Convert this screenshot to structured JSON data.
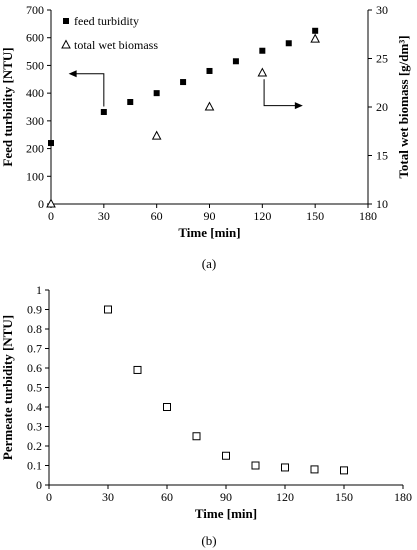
{
  "chart_data": [
    {
      "panel": "(a)",
      "type": "scatter",
      "xlabel": "Time [min]",
      "ylabel": "Feed turbidity [NTU]",
      "y2label": "Total wet biomass [g/dm³]",
      "xlim": [
        0,
        180
      ],
      "ylim": [
        0,
        700
      ],
      "y2lim": [
        10,
        30
      ],
      "xticks": [
        "0",
        "30",
        "60",
        "90",
        "120",
        "150",
        "180"
      ],
      "yticks": [
        "0",
        "100",
        "200",
        "300",
        "400",
        "500",
        "600",
        "700"
      ],
      "y2ticks": [
        "10",
        "15",
        "20",
        "25",
        "30"
      ],
      "legend_position": "top-left",
      "grid": false,
      "series": [
        {
          "name": "feed turbidity",
          "axis": "left",
          "marker": "filled-square",
          "x": [
            0,
            30,
            45,
            60,
            75,
            90,
            105,
            120,
            135,
            150
          ],
          "y": [
            220,
            332,
            368,
            400,
            440,
            480,
            515,
            553,
            580,
            625
          ]
        },
        {
          "name": "total wet biomass",
          "axis": "right",
          "marker": "open-triangle",
          "x": [
            0,
            60,
            90,
            120,
            150
          ],
          "y": [
            10,
            17,
            20,
            23.5,
            27
          ]
        }
      ]
    },
    {
      "panel": "(b)",
      "type": "scatter",
      "xlabel": "Time [min]",
      "ylabel": "Permeate turbidity [NTU]",
      "xlim": [
        0,
        180
      ],
      "ylim": [
        0,
        1
      ],
      "xticks": [
        "0",
        "30",
        "60",
        "90",
        "120",
        "150",
        "180"
      ],
      "yticks": [
        "0",
        "0.1",
        "0.2",
        "0.3",
        "0.4",
        "0.5",
        "0.6",
        "0.7",
        "0.8",
        "0.9",
        "1"
      ],
      "grid": false,
      "series": [
        {
          "marker": "open-square",
          "x": [
            30,
            45,
            60,
            75,
            90,
            105,
            120,
            135,
            150
          ],
          "y": [
            0.9,
            0.59,
            0.4,
            0.25,
            0.15,
            0.1,
            0.09,
            0.08,
            0.075
          ]
        }
      ]
    }
  ]
}
